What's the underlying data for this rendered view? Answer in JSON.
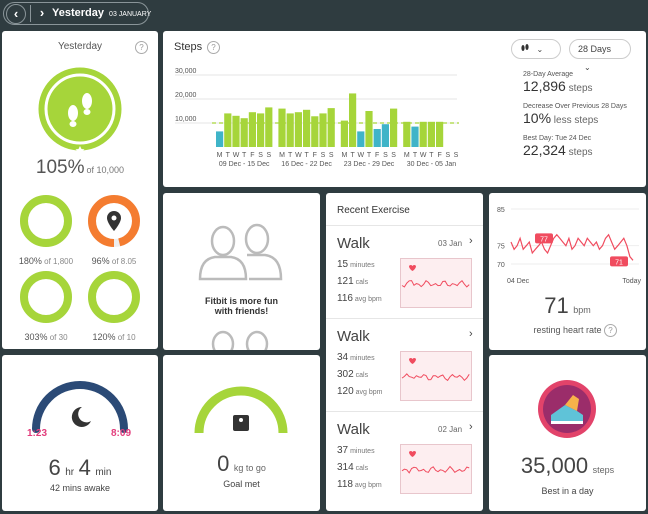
{
  "nav": {
    "prev_icon": "chevron-left",
    "next_icon": "chevron-right",
    "day": "Yesterday",
    "date": "03 JANUARY"
  },
  "summary": {
    "title": "Yesterday",
    "help": "?",
    "percent": "105%",
    "goal": "of 10,000",
    "steps_icon": "footprints-icon",
    "mini": [
      {
        "icon": "flame-icon",
        "value": "180%",
        "goal": "of 1,800",
        "fraction": 1.0,
        "color": "#a6d53a"
      },
      {
        "icon": "location-pin-icon",
        "value": "96%",
        "goal": "of 8.05",
        "fraction": 0.96,
        "color": "#f47c30"
      },
      {
        "icon": "bolt-icon",
        "value": "303%",
        "goal": "of 30",
        "fraction": 1.0,
        "color": "#a6d53a"
      },
      {
        "icon": "stairs-icon",
        "value": "120%",
        "goal": "of 10",
        "fraction": 1.0,
        "color": "#a6d53a"
      }
    ]
  },
  "steps": {
    "title": "Steps",
    "help": "?",
    "type_dropdown": "footprints-icon",
    "range_dropdown": "28 Days",
    "stats": [
      {
        "label": "28-Day Average",
        "value": "12,896",
        "unit": "steps"
      },
      {
        "label": "Decrease Over Previous 28 Days",
        "value": "10%",
        "unit": "less steps"
      },
      {
        "label": "Best Day: Tue 24 Dec",
        "value": "22,324",
        "unit": "steps"
      }
    ],
    "chart_data": {
      "type": "bar",
      "y_ticks": [
        "30,000",
        "20,000",
        "10,000"
      ],
      "ylim": [
        0,
        30000
      ],
      "goal_line": 10000,
      "weeks": [
        {
          "label": "09 Dec - 15 Dec",
          "days": [
            "M",
            "T",
            "W",
            "T",
            "F",
            "S",
            "S"
          ],
          "values": [
            6500,
            14000,
            13000,
            12000,
            14500,
            14000,
            16500
          ]
        },
        {
          "label": "16 Dec - 22 Dec",
          "days": [
            "M",
            "T",
            "W",
            "T",
            "F",
            "S",
            "S"
          ],
          "values": [
            16000,
            14000,
            14500,
            15500,
            12800,
            14000,
            16200
          ]
        },
        {
          "label": "23 Dec - 29 Dec",
          "days": [
            "M",
            "T",
            "W",
            "T",
            "F",
            "S",
            "S"
          ],
          "values": [
            11000,
            22324,
            6500,
            15000,
            7500,
            9500,
            16000
          ]
        },
        {
          "label": "30 Dec - 05 Jan",
          "days": [
            "M",
            "T",
            "W",
            "T",
            "F",
            "S",
            "S"
          ],
          "values": [
            10500,
            8500,
            10500,
            10500,
            10500,
            0,
            0
          ]
        }
      ],
      "below_goal_color": "#3fb4c8",
      "above_goal_color": "#a6d53a"
    }
  },
  "social": {
    "text1": "Fitbit is more fun",
    "text2": "with friends!"
  },
  "recent": {
    "title": "Recent Exercise",
    "items": [
      {
        "name": "Walk",
        "date": "03 Jan",
        "minutes": "15",
        "minutes_unit": "minutes",
        "cals": "121",
        "cals_unit": "cals",
        "bpm": "116",
        "bpm_unit": "avg bpm"
      },
      {
        "name": "Walk",
        "date": "",
        "minutes": "34",
        "minutes_unit": "minutes",
        "cals": "302",
        "cals_unit": "cals",
        "bpm": "120",
        "bpm_unit": "avg bpm"
      },
      {
        "name": "Walk",
        "date": "02 Jan",
        "minutes": "37",
        "minutes_unit": "minutes",
        "cals": "314",
        "cals_unit": "cals",
        "bpm": "118",
        "bpm_unit": "avg bpm"
      }
    ]
  },
  "heart": {
    "y_ticks": [
      "85",
      "75",
      "70"
    ],
    "x_start": "04 Dec",
    "x_end": "Today",
    "tag_high": "77",
    "tag_low": "71",
    "value": "71",
    "unit": "bpm",
    "label": "resting heart rate",
    "help": "?",
    "series": [
      76,
      74,
      75,
      77,
      74,
      75,
      76,
      73,
      74,
      75,
      76,
      74,
      73,
      75,
      77,
      78,
      77,
      76,
      75,
      77,
      74,
      75,
      77,
      76,
      75,
      77,
      76,
      75,
      76,
      74,
      75,
      77,
      78,
      76,
      74,
      75,
      76,
      77,
      75,
      72,
      71
    ]
  },
  "sleep": {
    "start": "1:23",
    "end": "8:09",
    "hr": "6",
    "hr_unit": "hr",
    "min": "4",
    "min_unit": "min",
    "awake": "42 mins awake",
    "arc_color": "#2b4a76"
  },
  "weight": {
    "value": "0",
    "unit": "kg to go",
    "label": "Goal met"
  },
  "badge": {
    "value": "35,000",
    "unit": "steps",
    "label": "Best in a day"
  }
}
